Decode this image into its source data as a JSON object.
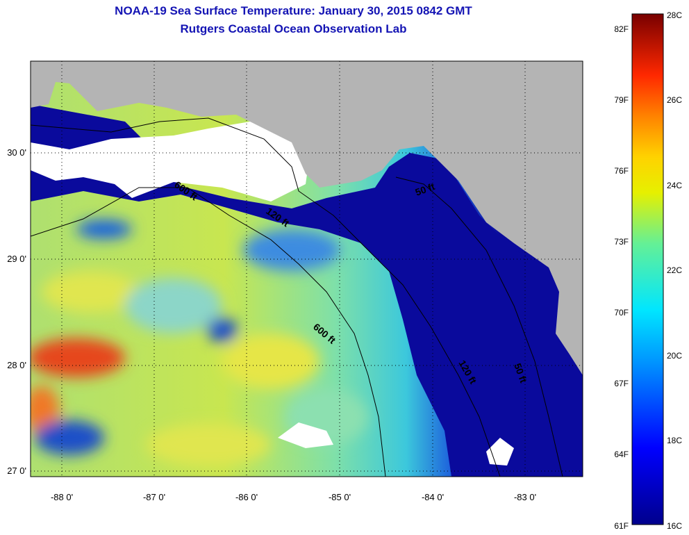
{
  "title": {
    "line1": "NOAA-19 Sea Surface Temperature:  January 30, 2015 0842 GMT",
    "line2": "Rutgers Coastal Ocean Observation Lab"
  },
  "map": {
    "lat_labels": [
      "30 0'",
      "29 0'",
      "28 0'",
      "27 0'"
    ],
    "lon_labels": [
      "-88 0'",
      "-87 0'",
      "-86 0'",
      "-85 0'",
      "-84 0'",
      "-83 0'"
    ],
    "contour_labels": [
      "600 ft",
      "120 ft",
      "50 ft",
      "600 ft",
      "120 ft",
      "50 ft"
    ],
    "colors": {
      "land": "#b4b4b4",
      "cloud": "#ffffff",
      "cold": "#0a0a9c",
      "cool": "#1e64dc",
      "mid": "#3cc8dc",
      "warm": "#c8e650",
      "hot": "#e6461e"
    }
  },
  "colorbar": {
    "celsius_labels": [
      "28C",
      "26C",
      "24C",
      "22C",
      "20C",
      "18C",
      "16C"
    ],
    "fahrenheit_labels": [
      "82F",
      "79F",
      "76F",
      "73F",
      "70F",
      "67F",
      "64F",
      "61F"
    ],
    "min_c": 16,
    "max_c": 28
  }
}
